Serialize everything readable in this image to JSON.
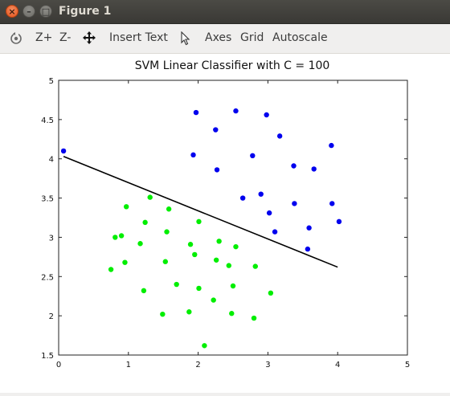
{
  "window": {
    "title": "Figure 1"
  },
  "toolbar": {
    "rotate_icon": "rotate-icon",
    "zoom_in_label": "Z+",
    "zoom_out_label": "Z-",
    "pan_icon": "move-arrows-icon",
    "insert_text_label": "Insert Text",
    "select_icon": "pointer-icon",
    "axes_label": "Axes",
    "grid_label": "Grid",
    "autoscale_label": "Autoscale"
  },
  "chart_data": {
    "type": "scatter",
    "title": "SVM Linear Classifier with C = 100",
    "xlabel": "",
    "ylabel": "",
    "xlim": [
      0,
      5
    ],
    "ylim": [
      1.5,
      5
    ],
    "xticks": [
      "0",
      "1",
      "2",
      "3",
      "4",
      "5"
    ],
    "yticks": [
      "1.5",
      "2",
      "2.5",
      "3",
      "3.5",
      "4",
      "4.5",
      "5"
    ],
    "grid": false,
    "colors": {
      "class_a": "#0000ee",
      "class_b": "#00ee00",
      "boundary": "#000000"
    },
    "series": [
      {
        "color": "#0000ee",
        "points": [
          [
            0.07,
            4.1
          ],
          [
            1.93,
            4.05
          ],
          [
            1.97,
            4.59
          ],
          [
            2.25,
            4.37
          ],
          [
            2.27,
            3.86
          ],
          [
            2.54,
            4.61
          ],
          [
            2.64,
            3.5
          ],
          [
            2.78,
            4.04
          ],
          [
            2.9,
            3.55
          ],
          [
            2.98,
            4.56
          ],
          [
            3.02,
            3.31
          ],
          [
            3.1,
            3.07
          ],
          [
            3.17,
            4.29
          ],
          [
            3.37,
            3.91
          ],
          [
            3.38,
            3.43
          ],
          [
            3.57,
            2.85
          ],
          [
            3.59,
            3.12
          ],
          [
            3.66,
            3.87
          ],
          [
            3.91,
            4.17
          ],
          [
            3.92,
            3.43
          ],
          [
            4.02,
            3.2
          ]
        ]
      },
      {
        "color": "#00ee00",
        "points": [
          [
            0.75,
            2.59
          ],
          [
            0.81,
            3.0
          ],
          [
            0.9,
            3.02
          ],
          [
            0.95,
            2.68
          ],
          [
            0.97,
            3.39
          ],
          [
            1.17,
            2.92
          ],
          [
            1.22,
            2.32
          ],
          [
            1.24,
            3.19
          ],
          [
            1.31,
            3.51
          ],
          [
            1.49,
            2.02
          ],
          [
            1.53,
            2.69
          ],
          [
            1.55,
            3.07
          ],
          [
            1.58,
            3.36
          ],
          [
            1.69,
            2.4
          ],
          [
            1.87,
            2.05
          ],
          [
            1.89,
            2.91
          ],
          [
            1.95,
            2.78
          ],
          [
            2.01,
            2.35
          ],
          [
            2.01,
            3.2
          ],
          [
            2.09,
            1.62
          ],
          [
            2.22,
            2.2
          ],
          [
            2.26,
            2.71
          ],
          [
            2.3,
            2.95
          ],
          [
            2.44,
            2.64
          ],
          [
            2.48,
            2.03
          ],
          [
            2.5,
            2.38
          ],
          [
            2.54,
            2.88
          ],
          [
            2.8,
            1.97
          ],
          [
            2.82,
            2.63
          ],
          [
            3.04,
            2.29
          ]
        ]
      }
    ],
    "boundary_line": [
      [
        0.07,
        4.03
      ],
      [
        4.0,
        2.62
      ]
    ]
  }
}
